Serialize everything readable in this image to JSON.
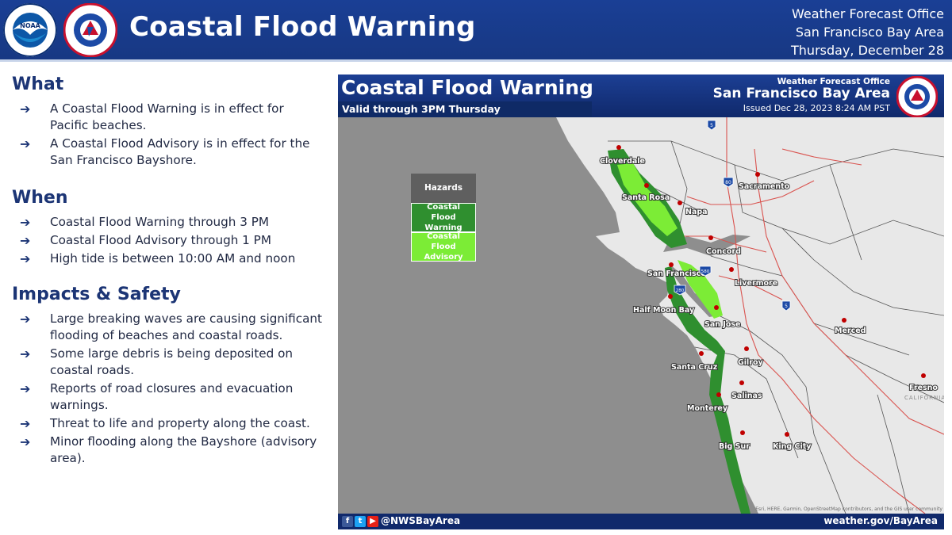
{
  "banner": {
    "title": "Coastal Flood Warning",
    "office_line1": "Weather Forecast Office",
    "office_line2": "San Francisco Bay Area",
    "date": "Thursday, December 28",
    "colors": {
      "background": "#1a3f95",
      "text": "#ffffff"
    },
    "logos": [
      "noaa-seal",
      "national-weather-service-seal"
    ]
  },
  "what": {
    "heading": "What",
    "bullets": [
      "A Coastal Flood Warning is in effect for Pacific beaches.",
      "A Coastal Flood Advisory is in effect for the San Francisco Bayshore."
    ]
  },
  "when": {
    "heading": "When",
    "bullets": [
      "Coastal Flood Warning through 3 PM",
      "Coastal Flood Advisory through 1 PM",
      "High tide is between 10:00 AM and noon"
    ]
  },
  "impacts": {
    "heading": "Impacts & Safety",
    "bullets": [
      "Large breaking waves are causing significant flooding of beaches and coastal roads.",
      "Some large debris is being deposited on coastal roads.",
      "Reports of road closures and evacuation warnings.",
      "Threat to life and property along the coast.",
      "Minor flooding along the Bayshore (advisory area)."
    ]
  },
  "bullet_icon": "right-arrow-icon",
  "map": {
    "title": "Coastal Flood Warning",
    "valid": "Valid through 3PM Thursday",
    "office_label": "Weather Forecast Office",
    "office_name": "San Francisco Bay Area",
    "issued": "Issued Dec 28, 2023 8:24 AM PST",
    "legend": {
      "title": "Hazards",
      "warning": "Coastal Flood Warning",
      "advisory": "Coastal Flood Advisory",
      "warning_color": "#2f8f2f",
      "advisory_color": "#7cec36"
    },
    "cities": [
      "Cloverdale",
      "Santa Rosa",
      "Napa",
      "Sacramento",
      "Concord",
      "San Francisco",
      "Livermore",
      "Half Moon Bay",
      "San Jose",
      "Merced",
      "Santa Cruz",
      "Gilroy",
      "Salinas",
      "Monterey",
      "Fresno",
      "Big Sur",
      "King City"
    ],
    "interstates": [
      "5",
      "80",
      "580",
      "280",
      "5"
    ],
    "state_label": "CALIFORNIA",
    "credit": "Esri, HERE, Garmin, OpenStreetMap contributors, and the GIS user community",
    "footer": {
      "social_icons": [
        "facebook-icon",
        "twitter-icon",
        "youtube-icon"
      ],
      "handle": "@NWSBayArea",
      "website": "weather.gov/BayArea"
    },
    "colors": {
      "ocean": "#8e8e8e",
      "land": "#e8e8e8",
      "county_lines": "#555555",
      "roads": "#d9534f",
      "city_dots": "#c00000"
    }
  }
}
